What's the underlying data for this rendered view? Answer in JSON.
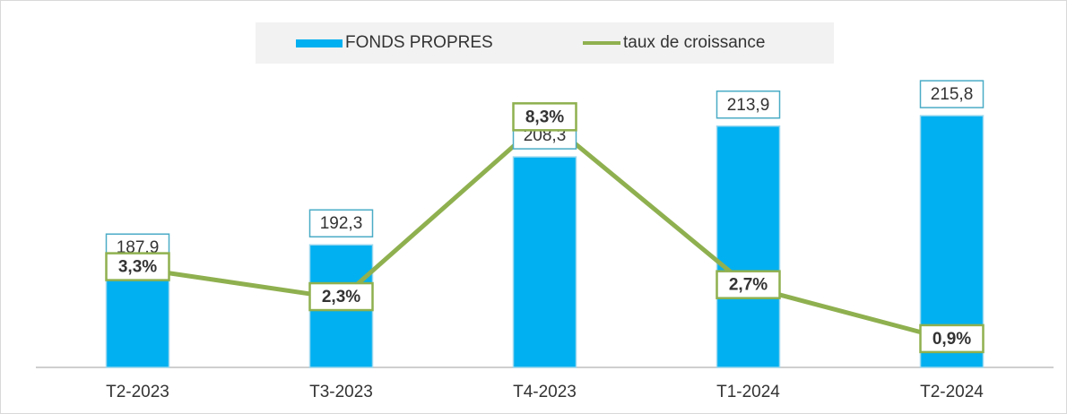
{
  "chart_data": {
    "type": "bar_line",
    "categories": [
      "T2-2023",
      "T3-2023",
      "T4-2023",
      "T1-2024",
      "T2-2024"
    ],
    "series": [
      {
        "name": "FONDS PROPRES",
        "color": "#00b0f0",
        "type": "bar",
        "values": [
          187.9,
          192.3,
          208.3,
          213.9,
          215.8
        ],
        "value_labels": [
          "187,9",
          "192,3",
          "208,3",
          "213,9",
          "215,8"
        ]
      },
      {
        "name": "taux de croissance",
        "color": "#8fb04f",
        "type": "line",
        "axis": "y2",
        "values": [
          3.3,
          2.3,
          8.3,
          2.7,
          0.9
        ],
        "value_labels": [
          "3,3%",
          "2,3%",
          "8,3%",
          "2,7%",
          "0,9%"
        ]
      }
    ],
    "ylim": [
      170,
      230
    ],
    "y2lim": [
      0,
      11
    ],
    "legend": "top"
  }
}
